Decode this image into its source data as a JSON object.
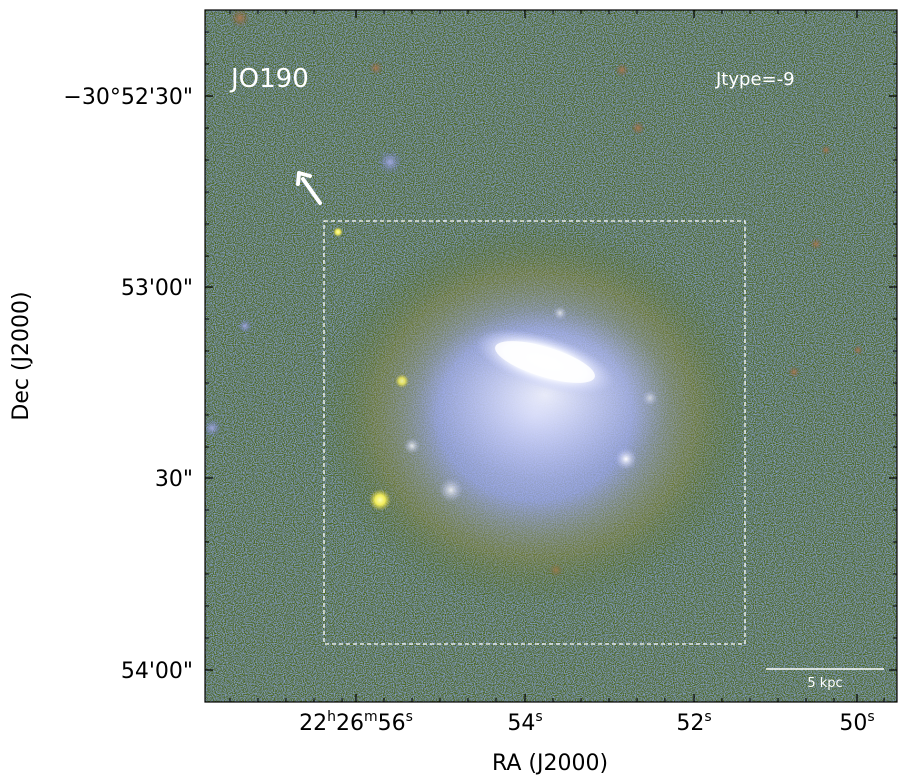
{
  "image": {
    "object_name": "JO190",
    "jtype_label": "Jtype=-9",
    "scale_bar_label": "5 kpc",
    "colors": {
      "background_noise_green": "#4f6a1e",
      "background_noise_blue": "#4a6fb4",
      "galaxy_core": "#ffffff",
      "galaxy_halo": "#9fa9f0",
      "bright_star_yellow": "#f8f25a",
      "annotation": "#ffffff"
    }
  },
  "axes": {
    "xlabel": "RA (J2000)",
    "ylabel": "Dec (J2000)",
    "x_ticks": [
      {
        "hours": "22",
        "h": "h",
        "minutes": "26",
        "m": "m",
        "seconds": "56",
        "s": "s"
      },
      {
        "seconds": "54",
        "s": "s"
      },
      {
        "seconds": "52",
        "s": "s"
      },
      {
        "seconds": "50",
        "s": "s"
      }
    ],
    "y_ticks": [
      "−30°52'30\"",
      "53'00\"",
      "30\"",
      "54'00\""
    ]
  }
}
